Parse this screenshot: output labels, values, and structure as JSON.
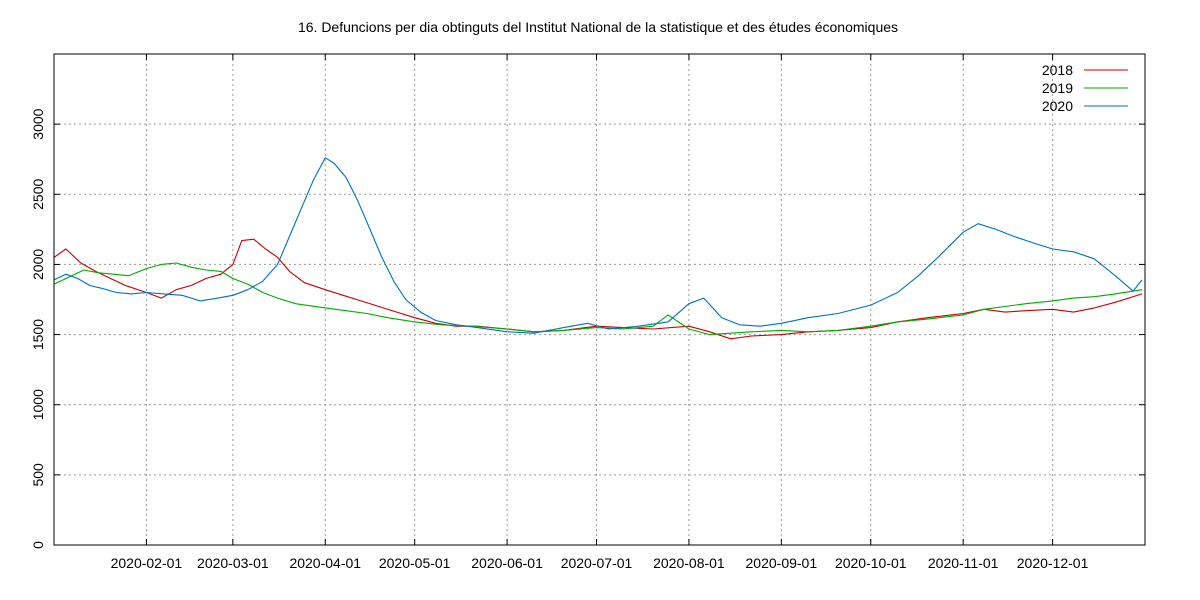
{
  "chart_data": {
    "type": "line",
    "title": "16. Defuncions per dia obtinguts del Institut National de la statistique et des études économiques",
    "xlabel": "",
    "ylabel": "",
    "xlim": [
      "2020-01-01",
      "2021-01-01"
    ],
    "ylim": [
      0,
      3500
    ],
    "x_ticks": [
      "2020-02-01",
      "2020-03-01",
      "2020-04-01",
      "2020-05-01",
      "2020-06-01",
      "2020-07-01",
      "2020-08-01",
      "2020-09-01",
      "2020-10-01",
      "2020-11-01",
      "2020-12-01"
    ],
    "y_ticks": [
      0,
      500,
      1000,
      1500,
      2000,
      2500,
      3000
    ],
    "grid": true,
    "legend_position": "top-right",
    "series": [
      {
        "name": "2018",
        "color": "#cc0000",
        "points": [
          [
            "2020-01-01",
            2050
          ],
          [
            "2020-01-05",
            2110
          ],
          [
            "2020-01-10",
            2010
          ],
          [
            "2020-01-15",
            1950
          ],
          [
            "2020-01-20",
            1900
          ],
          [
            "2020-01-25",
            1850
          ],
          [
            "2020-02-01",
            1800
          ],
          [
            "2020-02-06",
            1760
          ],
          [
            "2020-02-11",
            1820
          ],
          [
            "2020-02-16",
            1850
          ],
          [
            "2020-02-21",
            1900
          ],
          [
            "2020-02-26",
            1930
          ],
          [
            "2020-03-01",
            2000
          ],
          [
            "2020-03-04",
            2170
          ],
          [
            "2020-03-08",
            2180
          ],
          [
            "2020-03-12",
            2110
          ],
          [
            "2020-03-16",
            2050
          ],
          [
            "2020-03-20",
            1950
          ],
          [
            "2020-03-25",
            1870
          ],
          [
            "2020-04-01",
            1820
          ],
          [
            "2020-04-07",
            1780
          ],
          [
            "2020-04-13",
            1740
          ],
          [
            "2020-04-19",
            1700
          ],
          [
            "2020-04-25",
            1660
          ],
          [
            "2020-05-01",
            1620
          ],
          [
            "2020-05-08",
            1580
          ],
          [
            "2020-05-15",
            1560
          ],
          [
            "2020-05-22",
            1560
          ],
          [
            "2020-06-01",
            1540
          ],
          [
            "2020-06-10",
            1520
          ],
          [
            "2020-06-20",
            1530
          ],
          [
            "2020-07-01",
            1560
          ],
          [
            "2020-07-10",
            1550
          ],
          [
            "2020-07-20",
            1540
          ],
          [
            "2020-08-01",
            1560
          ],
          [
            "2020-08-08",
            1520
          ],
          [
            "2020-08-15",
            1470
          ],
          [
            "2020-08-22",
            1490
          ],
          [
            "2020-09-01",
            1500
          ],
          [
            "2020-09-10",
            1520
          ],
          [
            "2020-09-20",
            1530
          ],
          [
            "2020-10-01",
            1550
          ],
          [
            "2020-10-10",
            1590
          ],
          [
            "2020-10-20",
            1620
          ],
          [
            "2020-11-01",
            1650
          ],
          [
            "2020-11-08",
            1680
          ],
          [
            "2020-11-15",
            1660
          ],
          [
            "2020-11-22",
            1670
          ],
          [
            "2020-12-01",
            1680
          ],
          [
            "2020-12-08",
            1660
          ],
          [
            "2020-12-15",
            1690
          ],
          [
            "2020-12-22",
            1730
          ],
          [
            "2020-12-31",
            1790
          ]
        ]
      },
      {
        "name": "2019",
        "color": "#00aa00",
        "points": [
          [
            "2020-01-01",
            1860
          ],
          [
            "2020-01-06",
            1910
          ],
          [
            "2020-01-11",
            1960
          ],
          [
            "2020-01-16",
            1940
          ],
          [
            "2020-01-21",
            1930
          ],
          [
            "2020-01-26",
            1920
          ],
          [
            "2020-02-01",
            1970
          ],
          [
            "2020-02-06",
            2000
          ],
          [
            "2020-02-11",
            2010
          ],
          [
            "2020-02-16",
            1980
          ],
          [
            "2020-02-21",
            1960
          ],
          [
            "2020-02-26",
            1950
          ],
          [
            "2020-03-01",
            1900
          ],
          [
            "2020-03-06",
            1860
          ],
          [
            "2020-03-11",
            1800
          ],
          [
            "2020-03-16",
            1760
          ],
          [
            "2020-03-22",
            1720
          ],
          [
            "2020-04-01",
            1690
          ],
          [
            "2020-04-08",
            1670
          ],
          [
            "2020-04-15",
            1650
          ],
          [
            "2020-04-22",
            1620
          ],
          [
            "2020-05-01",
            1590
          ],
          [
            "2020-05-10",
            1570
          ],
          [
            "2020-05-20",
            1560
          ],
          [
            "2020-06-01",
            1540
          ],
          [
            "2020-06-10",
            1520
          ],
          [
            "2020-06-20",
            1530
          ],
          [
            "2020-07-01",
            1550
          ],
          [
            "2020-07-10",
            1540
          ],
          [
            "2020-07-20",
            1560
          ],
          [
            "2020-07-25",
            1640
          ],
          [
            "2020-08-01",
            1540
          ],
          [
            "2020-08-08",
            1500
          ],
          [
            "2020-08-15",
            1510
          ],
          [
            "2020-08-22",
            1520
          ],
          [
            "2020-09-01",
            1530
          ],
          [
            "2020-09-10",
            1520
          ],
          [
            "2020-09-20",
            1530
          ],
          [
            "2020-10-01",
            1560
          ],
          [
            "2020-10-10",
            1590
          ],
          [
            "2020-10-20",
            1610
          ],
          [
            "2020-11-01",
            1640
          ],
          [
            "2020-11-08",
            1680
          ],
          [
            "2020-11-15",
            1700
          ],
          [
            "2020-11-22",
            1720
          ],
          [
            "2020-12-01",
            1740
          ],
          [
            "2020-12-08",
            1760
          ],
          [
            "2020-12-15",
            1770
          ],
          [
            "2020-12-22",
            1790
          ],
          [
            "2020-12-31",
            1820
          ]
        ]
      },
      {
        "name": "2020",
        "color": "#0072bd",
        "points": [
          [
            "2020-01-01",
            1890
          ],
          [
            "2020-01-05",
            1930
          ],
          [
            "2020-01-09",
            1900
          ],
          [
            "2020-01-13",
            1850
          ],
          [
            "2020-01-17",
            1830
          ],
          [
            "2020-01-22",
            1800
          ],
          [
            "2020-01-27",
            1790
          ],
          [
            "2020-02-01",
            1800
          ],
          [
            "2020-02-07",
            1790
          ],
          [
            "2020-02-13",
            1780
          ],
          [
            "2020-02-19",
            1740
          ],
          [
            "2020-02-25",
            1760
          ],
          [
            "2020-03-01",
            1780
          ],
          [
            "2020-03-06",
            1820
          ],
          [
            "2020-03-11",
            1880
          ],
          [
            "2020-03-16",
            2000
          ],
          [
            "2020-03-20",
            2200
          ],
          [
            "2020-03-24",
            2400
          ],
          [
            "2020-03-28",
            2600
          ],
          [
            "2020-04-01",
            2760
          ],
          [
            "2020-04-04",
            2720
          ],
          [
            "2020-04-08",
            2620
          ],
          [
            "2020-04-12",
            2450
          ],
          [
            "2020-04-16",
            2250
          ],
          [
            "2020-04-20",
            2050
          ],
          [
            "2020-04-24",
            1880
          ],
          [
            "2020-04-28",
            1750
          ],
          [
            "2020-05-03",
            1660
          ],
          [
            "2020-05-08",
            1600
          ],
          [
            "2020-05-15",
            1570
          ],
          [
            "2020-05-22",
            1550
          ],
          [
            "2020-06-01",
            1520
          ],
          [
            "2020-06-10",
            1510
          ],
          [
            "2020-06-20",
            1550
          ],
          [
            "2020-06-28",
            1580
          ],
          [
            "2020-07-05",
            1540
          ],
          [
            "2020-07-15",
            1560
          ],
          [
            "2020-07-25",
            1590
          ],
          [
            "2020-08-01",
            1720
          ],
          [
            "2020-08-06",
            1760
          ],
          [
            "2020-08-12",
            1620
          ],
          [
            "2020-08-18",
            1570
          ],
          [
            "2020-08-25",
            1560
          ],
          [
            "2020-09-01",
            1580
          ],
          [
            "2020-09-10",
            1620
          ],
          [
            "2020-09-20",
            1650
          ],
          [
            "2020-10-01",
            1710
          ],
          [
            "2020-10-10",
            1800
          ],
          [
            "2020-10-17",
            1920
          ],
          [
            "2020-10-24",
            2060
          ],
          [
            "2020-11-01",
            2230
          ],
          [
            "2020-11-06",
            2290
          ],
          [
            "2020-11-12",
            2250
          ],
          [
            "2020-11-18",
            2200
          ],
          [
            "2020-11-25",
            2150
          ],
          [
            "2020-12-01",
            2110
          ],
          [
            "2020-12-08",
            2090
          ],
          [
            "2020-12-15",
            2040
          ],
          [
            "2020-12-22",
            1920
          ],
          [
            "2020-12-28",
            1810
          ],
          [
            "2020-12-31",
            1890
          ]
        ]
      }
    ]
  }
}
